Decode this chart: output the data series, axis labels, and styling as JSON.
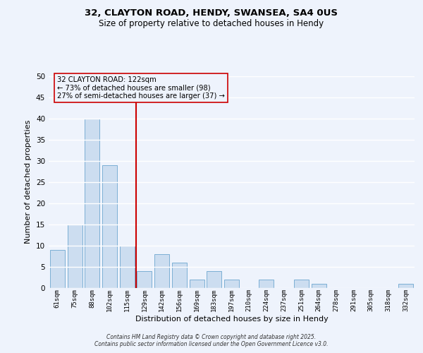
{
  "title1": "32, CLAYTON ROAD, HENDY, SWANSEA, SA4 0US",
  "title2": "Size of property relative to detached houses in Hendy",
  "xlabel": "Distribution of detached houses by size in Hendy",
  "ylabel": "Number of detached properties",
  "categories": [
    "61sqm",
    "75sqm",
    "88sqm",
    "102sqm",
    "115sqm",
    "129sqm",
    "142sqm",
    "156sqm",
    "169sqm",
    "183sqm",
    "197sqm",
    "210sqm",
    "224sqm",
    "237sqm",
    "251sqm",
    "264sqm",
    "278sqm",
    "291sqm",
    "305sqm",
    "318sqm",
    "332sqm"
  ],
  "values": [
    9,
    15,
    40,
    29,
    10,
    4,
    8,
    6,
    2,
    4,
    2,
    0,
    2,
    0,
    2,
    1,
    0,
    0,
    0,
    0,
    1
  ],
  "bar_color": "#ccddf0",
  "bar_edge_color": "#7bafd4",
  "vline_x_idx": 4.5,
  "vline_color": "#cc0000",
  "annotation_title": "32 CLAYTON ROAD: 122sqm",
  "annotation_line1": "← 73% of detached houses are smaller (98)",
  "annotation_line2": "27% of semi-detached houses are larger (37) →",
  "ylim": [
    0,
    50
  ],
  "yticks": [
    0,
    5,
    10,
    15,
    20,
    25,
    30,
    35,
    40,
    45,
    50
  ],
  "background_color": "#eef3fc",
  "grid_color": "#ffffff",
  "footer1": "Contains HM Land Registry data © Crown copyright and database right 2025.",
  "footer2": "Contains public sector information licensed under the Open Government Licence v3.0."
}
